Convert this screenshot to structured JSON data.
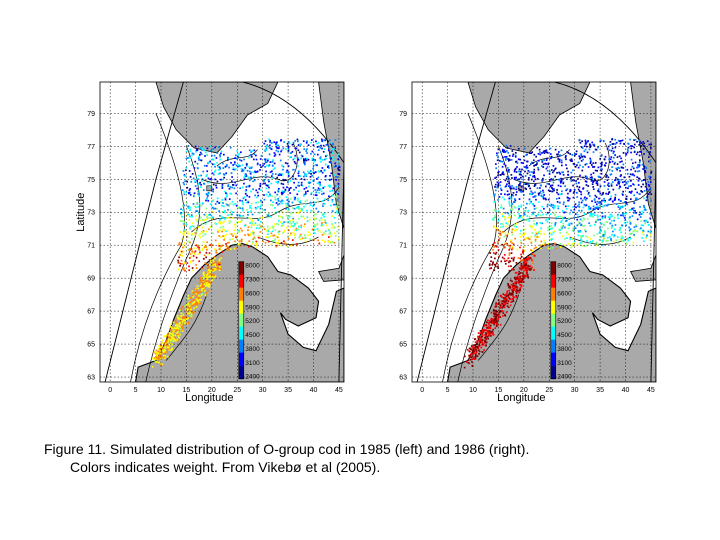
{
  "figure": {
    "panels": [
      {
        "id": "1985",
        "ylabel": "Latitude",
        "xlabel": "Longitude",
        "y_ticks": [
          "79",
          "77",
          "75",
          "73",
          "71",
          "69",
          "67",
          "65",
          "63"
        ],
        "x_ticks": [
          "0",
          "5",
          "10",
          "15",
          "20",
          "25",
          "30",
          "35",
          "40",
          "45"
        ],
        "colorbar_labels": [
          "8000",
          "7300",
          "6600",
          "5900",
          "5200",
          "4500",
          "3800",
          "3100",
          "2400"
        ]
      },
      {
        "id": "1986",
        "ylabel": "",
        "xlabel": "Longitude",
        "y_ticks": [
          "79",
          "77",
          "75",
          "73",
          "71",
          "69",
          "67",
          "65",
          "63"
        ],
        "x_ticks": [
          "0",
          "5",
          "10",
          "15",
          "20",
          "25",
          "30",
          "35",
          "40",
          "45"
        ],
        "colorbar_labels": [
          "8000",
          "7300",
          "6600",
          "5900",
          "5200",
          "4500",
          "3800",
          "3100",
          "2400"
        ]
      }
    ],
    "colors": {
      "land": "#a9a9a9",
      "colormap": [
        "#00008f",
        "#0000ff",
        "#0080ff",
        "#00ffff",
        "#80ff80",
        "#ffff00",
        "#ff8000",
        "#ff0000",
        "#800000"
      ]
    }
  },
  "caption": {
    "line1": "Figure 11.  Simulated distribution of O-group cod in 1985 (left) and 1986 (right).",
    "line2": "Colors indicates weight.  From Vikebø et al (2005)."
  }
}
